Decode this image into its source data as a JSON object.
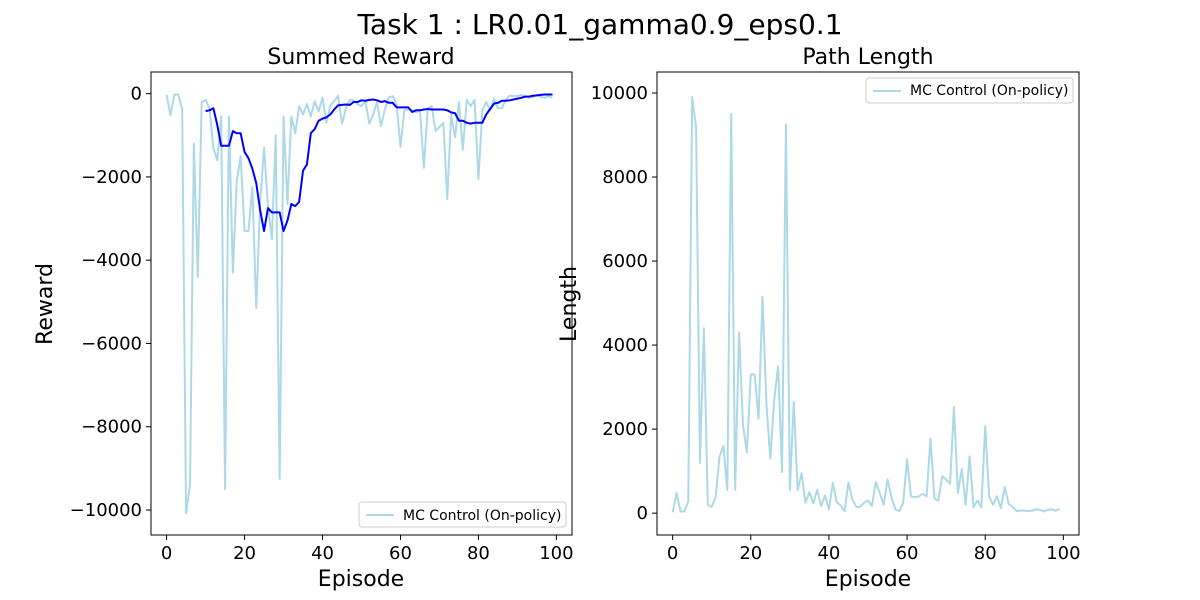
{
  "figure": {
    "suptitle": "Task 1 : LR0.01_gamma0.9_eps0.1"
  },
  "chart_data": [
    {
      "type": "line",
      "title": "Summed Reward",
      "xlabel": "Episode",
      "ylabel": "Reward",
      "xlim": [
        -4,
        104
      ],
      "ylim": [
        -10600,
        520
      ],
      "xticks": [
        0,
        20,
        40,
        60,
        80,
        100
      ],
      "yticks": [
        -10000,
        -8000,
        -6000,
        -4000,
        -2000,
        0
      ],
      "xtick_labels": [
        "0",
        "20",
        "40",
        "60",
        "80",
        "100"
      ],
      "ytick_labels": [
        "−10000",
        "−8000",
        "−6000",
        "−4000",
        "−2000",
        "0"
      ],
      "grid": false,
      "legend": {
        "position": "lower-right",
        "entries": [
          "MC Control (On-policy)"
        ]
      },
      "series": [
        {
          "name": "MC Control (On-policy)",
          "color": "#add8e6",
          "x": [
            0,
            1,
            2,
            3,
            4,
            5,
            6,
            7,
            8,
            9,
            10,
            11,
            12,
            13,
            14,
            15,
            16,
            17,
            18,
            19,
            20,
            21,
            22,
            23,
            24,
            25,
            26,
            27,
            28,
            29,
            30,
            31,
            32,
            33,
            34,
            35,
            36,
            37,
            38,
            39,
            40,
            41,
            42,
            43,
            44,
            45,
            46,
            47,
            48,
            49,
            50,
            51,
            52,
            53,
            54,
            55,
            56,
            57,
            58,
            59,
            60,
            61,
            62,
            63,
            64,
            65,
            66,
            67,
            68,
            69,
            70,
            71,
            72,
            73,
            74,
            75,
            76,
            77,
            78,
            79,
            80,
            81,
            82,
            83,
            84,
            85,
            86,
            87,
            88,
            89,
            90,
            91,
            92,
            93,
            94,
            95,
            96,
            97,
            98,
            99
          ],
          "values": [
            -20,
            -520,
            -20,
            -20,
            -380,
            -10080,
            -9400,
            -1200,
            -4400,
            -200,
            -150,
            -350,
            -1300,
            -1600,
            -550,
            -9500,
            -550,
            -4300,
            -2100,
            -1500,
            -3300,
            -3300,
            -2250,
            -5150,
            -2600,
            -1300,
            -2700,
            -3500,
            -1000,
            -9250,
            -550,
            -2650,
            -550,
            -950,
            -300,
            -500,
            -250,
            -550,
            -180,
            -430,
            -100,
            -700,
            -280,
            -180,
            -50,
            -720,
            -350,
            -150,
            -160,
            -250,
            -300,
            -180,
            -720,
            -500,
            -200,
            -780,
            -380,
            -90,
            -60,
            -250,
            -1280,
            -400,
            -380,
            -400,
            -450,
            -400,
            -1780,
            -350,
            -300,
            -900,
            -800,
            -700,
            -2530,
            -500,
            -1050,
            -200,
            -1350,
            -150,
            -300,
            -150,
            -2050,
            -400,
            -200,
            -400,
            -120,
            -350,
            -350,
            -150,
            -50,
            -60,
            -60,
            -30,
            -60,
            -100,
            -80,
            -30,
            -80,
            -100,
            -60,
            -100
          ]
        },
        {
          "name": "",
          "color": "#0000ff",
          "x": [
            10,
            11,
            12,
            13,
            14,
            15,
            16,
            17,
            18,
            19,
            20,
            21,
            22,
            23,
            24,
            25,
            26,
            27,
            28,
            29,
            30,
            31,
            32,
            33,
            34,
            35,
            36,
            37,
            38,
            39,
            40,
            41,
            42,
            43,
            44,
            45,
            46,
            47,
            48,
            49,
            50,
            51,
            52,
            53,
            54,
            55,
            56,
            57,
            58,
            59,
            60,
            61,
            62,
            63,
            64,
            65,
            66,
            67,
            68,
            69,
            70,
            71,
            72,
            73,
            74,
            75,
            76,
            77,
            78,
            79,
            80,
            81,
            82,
            83,
            84,
            85,
            86,
            87,
            88,
            89,
            90,
            91,
            92,
            93,
            94,
            95,
            96,
            97,
            98,
            99
          ],
          "values": [
            -420,
            -400,
            -350,
            -750,
            -1250,
            -1250,
            -1250,
            -900,
            -950,
            -950,
            -1400,
            -1550,
            -1800,
            -2150,
            -2800,
            -3300,
            -2750,
            -2850,
            -2850,
            -2850,
            -3300,
            -3050,
            -2650,
            -2700,
            -2600,
            -1850,
            -1700,
            -950,
            -850,
            -650,
            -600,
            -570,
            -500,
            -380,
            -280,
            -270,
            -260,
            -270,
            -200,
            -200,
            -160,
            -170,
            -150,
            -140,
            -160,
            -200,
            -180,
            -220,
            -220,
            -330,
            -330,
            -330,
            -330,
            -440,
            -400,
            -400,
            -380,
            -370,
            -380,
            -380,
            -380,
            -380,
            -400,
            -450,
            -470,
            -650,
            -650,
            -700,
            -720,
            -700,
            -700,
            -700,
            -500,
            -370,
            -240,
            -220,
            -170,
            -170,
            -160,
            -140,
            -120,
            -100,
            -70,
            -70,
            -50,
            -40,
            -30,
            -20,
            -20,
            -20
          ]
        }
      ]
    },
    {
      "type": "line",
      "title": "Path Length",
      "xlabel": "Episode",
      "ylabel": "Length",
      "xlim": [
        -4,
        104
      ],
      "ylim": [
        -520,
        10500
      ],
      "xticks": [
        0,
        20,
        40,
        60,
        80,
        100
      ],
      "yticks": [
        0,
        2000,
        4000,
        6000,
        8000,
        10000
      ],
      "xtick_labels": [
        "0",
        "20",
        "40",
        "60",
        "80",
        "100"
      ],
      "ytick_labels": [
        "0",
        "2000",
        "4000",
        "6000",
        "8000",
        "10000"
      ],
      "grid": false,
      "legend": {
        "position": "top-right",
        "entries": [
          "MC Control (On-policy)"
        ]
      },
      "series": [
        {
          "name": "MC Control (On-policy)",
          "color": "#add8e6",
          "x": [
            0,
            1,
            2,
            3,
            4,
            5,
            6,
            7,
            8,
            9,
            10,
            11,
            12,
            13,
            14,
            15,
            16,
            17,
            18,
            19,
            20,
            21,
            22,
            23,
            24,
            25,
            26,
            27,
            28,
            29,
            30,
            31,
            32,
            33,
            34,
            35,
            36,
            37,
            38,
            39,
            40,
            41,
            42,
            43,
            44,
            45,
            46,
            47,
            48,
            49,
            50,
            51,
            52,
            53,
            54,
            55,
            56,
            57,
            58,
            59,
            60,
            61,
            62,
            63,
            64,
            65,
            66,
            67,
            68,
            69,
            70,
            71,
            72,
            73,
            74,
            75,
            76,
            77,
            78,
            79,
            80,
            81,
            82,
            83,
            84,
            85,
            86,
            87,
            88,
            89,
            90,
            91,
            92,
            93,
            94,
            95,
            96,
            97,
            98,
            99
          ],
          "values": [
            20,
            480,
            40,
            40,
            280,
            9900,
            9200,
            1200,
            4400,
            200,
            150,
            380,
            1350,
            1600,
            550,
            9500,
            550,
            4300,
            2100,
            1450,
            3300,
            3300,
            2250,
            5150,
            2600,
            1300,
            2700,
            3500,
            980,
            9250,
            550,
            2650,
            550,
            950,
            250,
            500,
            230,
            560,
            170,
            420,
            90,
            720,
            260,
            180,
            50,
            730,
            330,
            150,
            150,
            250,
            300,
            170,
            740,
            480,
            200,
            800,
            380,
            90,
            50,
            240,
            1280,
            400,
            380,
            400,
            460,
            400,
            1780,
            350,
            300,
            880,
            800,
            700,
            2530,
            480,
            1050,
            200,
            1350,
            140,
            300,
            140,
            2070,
            400,
            200,
            400,
            120,
            620,
            220,
            150,
            50,
            60,
            60,
            50,
            60,
            90,
            80,
            40,
            80,
            90,
            60,
            100
          ]
        }
      ]
    }
  ]
}
